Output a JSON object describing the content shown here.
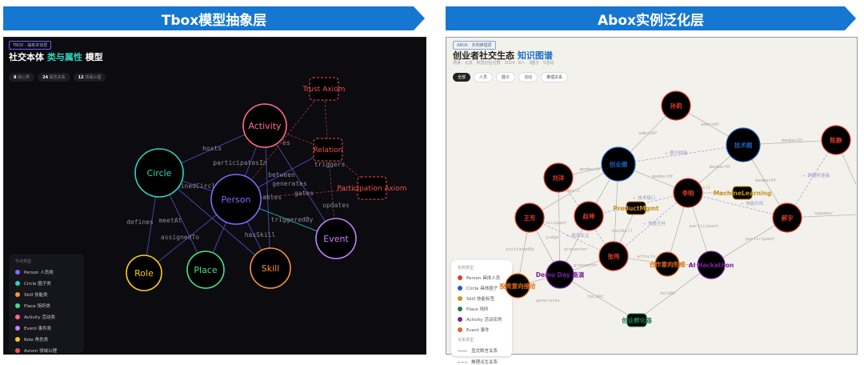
{
  "left": {
    "banner": "Tbox模型抽象层",
    "tag": "TBOX · 抽象本体层",
    "title_a": "社交本体",
    "title_b": "类与属性",
    "title_c": "模型",
    "stats": [
      {
        "n": "8",
        "l": "核心类"
      },
      {
        "n": "24",
        "l": "属性关系"
      },
      {
        "n": "12",
        "l": "领域公理"
      }
    ],
    "legend_title": "节点类型",
    "legend": [
      {
        "label": "Person 人员类",
        "color": "#7c6cff"
      },
      {
        "label": "Circle 圈子类",
        "color": "#2dd4bf"
      },
      {
        "label": "Skill 技能类",
        "color": "#fb923c"
      },
      {
        "label": "Place 场所类",
        "color": "#4ade80"
      },
      {
        "label": "Activity 活动类",
        "color": "#ff6b8a"
      },
      {
        "label": "Event 事件类",
        "color": "#c084fc"
      },
      {
        "label": "Role 角色类",
        "color": "#facc15"
      },
      {
        "label": "Axiom 领域公理",
        "color": "#f05252"
      }
    ],
    "nodes": [
      {
        "id": "Activity",
        "color": "#ff6b8a"
      },
      {
        "id": "Circle",
        "color": "#2dd4bf"
      },
      {
        "id": "Person",
        "color": "#7c6cff"
      },
      {
        "id": "Event",
        "color": "#c084fc"
      },
      {
        "id": "Role",
        "color": "#facc15"
      },
      {
        "id": "Place",
        "color": "#4ade80"
      },
      {
        "id": "Skill",
        "color": "#fb923c"
      },
      {
        "id": "Trust Axiom",
        "color": "#f05252"
      },
      {
        "id": "Relation",
        "color": "#f05252"
      },
      {
        "id": "Participation Axiom",
        "color": "#f05252"
      }
    ],
    "edge_labels": [
      "hosts",
      "participatesIn",
      "between",
      "generates",
      "gates",
      "updates",
      "ables",
      "triggers",
      "triggeredBy",
      "es",
      "joinedCircle",
      "meetAt",
      "hasSkill",
      "assignedTo",
      "defines"
    ]
  },
  "right": {
    "banner": "Abox实例泛化层",
    "tag": "ABOX · 实例推理层",
    "title_a": "创业者社交生态",
    "title_b": "知识图谱",
    "subtitle": "场景：北京 · 科技创业社群 · 2024 · 8人 · 3圈子 · 5活动",
    "filters": [
      "全部",
      "人员",
      "圈子",
      "活动",
      "推理关系"
    ],
    "legend_title": "实例类型",
    "legend": [
      {
        "label": "Person 具体人员",
        "color": "#e03a2a"
      },
      {
        "label": "Circle 具体圈子",
        "color": "#1e5fb8"
      },
      {
        "label": "Skill 技能标签",
        "color": "#c8921e"
      },
      {
        "label": "Place 场所",
        "color": "#1e7f4a"
      },
      {
        "label": "Activity 活动实例",
        "color": "#7a1fa2"
      },
      {
        "label": "Event 事件",
        "color": "#e06a1a"
      }
    ],
    "rel_title": "关系类型",
    "rels": [
      "显式断言关系",
      "推理派生关系"
    ],
    "nodes": [
      {
        "id": "孙莉",
        "color": "#e03a2a"
      },
      {
        "id": "技术圈",
        "color": "#1e5fb8"
      },
      {
        "id": "陈静",
        "color": "#e03a2a"
      },
      {
        "id": "创业圈",
        "color": "#1e5fb8"
      },
      {
        "id": "刘洋",
        "color": "#e03a2a"
      },
      {
        "id": "李明",
        "color": "#e03a2a"
      },
      {
        "id": "王芳",
        "color": "#e03a2a"
      },
      {
        "id": "赵坤",
        "color": "#e03a2a"
      },
      {
        "id": "郝宇",
        "color": "#e03a2a"
      },
      {
        "id": "ProductMgmt",
        "color": "#c8921e"
      },
      {
        "id": "MachineLearning",
        "color": "#c8921e"
      },
      {
        "id": "张伟",
        "color": "#e03a2a"
      },
      {
        "id": "合作意向形成",
        "color": "#e06a1a"
      },
      {
        "id": "AI Hackathon",
        "color": "#7a1fa2"
      },
      {
        "id": "Demo Day 路演",
        "color": "#7a1fa2"
      },
      {
        "id": "投资意向接洽",
        "color": "#e06a1a"
      },
      {
        "id": "创业孵化器",
        "color": "#1e7f4a"
      }
    ],
    "edge_labels": [
      "adminOf",
      "adminOf",
      "memberOf",
      "memberOf",
      "memberOf",
      "memberOf",
      "memberOf",
      "⇒ 圈子桥接",
      "⇒ 跨圈桥连接",
      "⇒ 技能互补",
      "⇒ 技能共鸣",
      "⇒ 技术接口",
      "⇒ 投资关注",
      "hasSkill",
      "hasSkill",
      "hasSkill",
      "participant",
      "participant",
      "participant",
      "judge",
      "presenter",
      "presenter",
      "initiatedBy",
      "affects",
      "heldAt",
      "heldAt",
      "speaker",
      "generates"
    ]
  }
}
